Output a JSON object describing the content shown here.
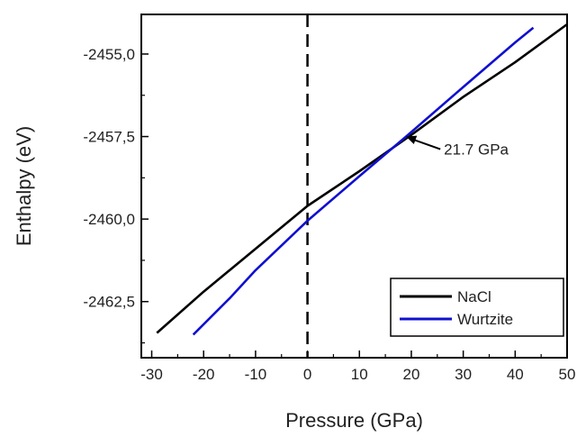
{
  "chart_data": {
    "type": "line",
    "title": "",
    "xlabel": "Pressure (GPa)",
    "ylabel": "Enthalpy (eV)",
    "xlim": [
      -32,
      50
    ],
    "ylim": [
      -2464.2,
      -2453.8
    ],
    "x_ticks": [
      -30,
      -20,
      -10,
      0,
      10,
      20,
      30,
      40,
      50
    ],
    "x_tick_labels": [
      "-30",
      "-20",
      "-10",
      "0",
      "10",
      "20",
      "30",
      "40",
      "50"
    ],
    "y_ticks": [
      -2455.0,
      -2457.5,
      -2460.0,
      -2462.5
    ],
    "y_tick_labels": [
      "-2455,0",
      "-2457,5",
      "-2460,0",
      "-2462,5"
    ],
    "grid": false,
    "legend_position": "bottom-right",
    "reference_line": {
      "x": 0,
      "style": "dashed"
    },
    "annotation": {
      "text": "21.7 GPa",
      "x": 19,
      "y": -2457.5
    },
    "series": [
      {
        "name": "NaCl",
        "color": "#000000",
        "x": [
          -29,
          -20,
          -10,
          0,
          10,
          20,
          30,
          40,
          50
        ],
        "y": [
          -2463.45,
          -2462.2,
          -2460.9,
          -2459.6,
          -2458.55,
          -2457.45,
          -2456.3,
          -2455.25,
          -2454.1
        ]
      },
      {
        "name": "Wurtzite",
        "color": "#1010d0",
        "x": [
          -22,
          -15,
          -10,
          0,
          10,
          19,
          30,
          40,
          43.5
        ],
        "y": [
          -2463.5,
          -2462.4,
          -2461.55,
          -2460.05,
          -2458.7,
          -2457.5,
          -2456.0,
          -2454.65,
          -2454.2
        ]
      }
    ]
  }
}
